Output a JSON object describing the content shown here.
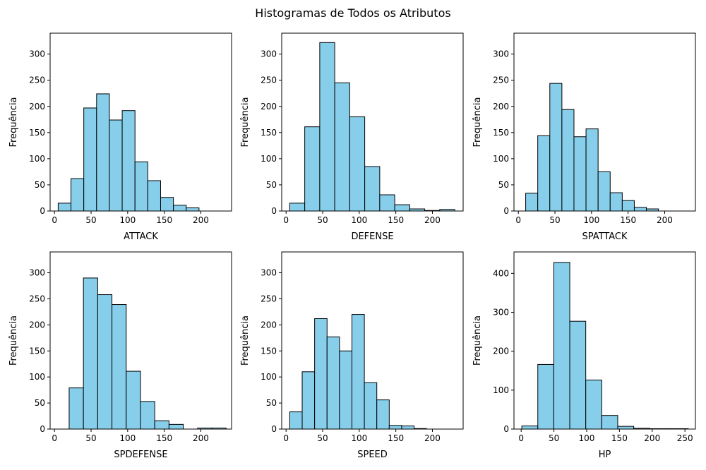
{
  "suptitle": "Histogramas de Todos os Atributos",
  "colors": {
    "bar_fill": "#87ceeb",
    "bar_edge": "#000000",
    "axes": "#000000",
    "background": "#ffffff"
  },
  "chart_data": [
    {
      "type": "bar",
      "subtype": "histogram",
      "xlabel": "ATTACK",
      "ylabel": "Frequência",
      "xlim": [
        -6,
        242
      ],
      "ylim": [
        0,
        340
      ],
      "xticks": [
        0,
        50,
        100,
        150,
        200
      ],
      "yticks": [
        0,
        50,
        100,
        150,
        200,
        250,
        300
      ],
      "bin_edges": [
        5,
        22.5,
        40,
        57.5,
        75,
        92.5,
        110,
        127.5,
        145,
        162.5,
        180,
        197.5,
        215,
        232.5
      ],
      "values": [
        15,
        62,
        197,
        224,
        174,
        192,
        94,
        58,
        26,
        11,
        6,
        0,
        0
      ],
      "grid": false
    },
    {
      "type": "bar",
      "subtype": "histogram",
      "xlabel": "DEFENSE",
      "ylabel": "Frequência",
      "xlim": [
        -6,
        242
      ],
      "ylim": [
        0,
        340
      ],
      "xticks": [
        0,
        50,
        100,
        150,
        200
      ],
      "yticks": [
        0,
        50,
        100,
        150,
        200,
        250,
        300
      ],
      "bin_edges": [
        5,
        25.5,
        46,
        66.5,
        87,
        107.5,
        128,
        148.5,
        169,
        189.5,
        210,
        230.5
      ],
      "values": [
        15,
        161,
        322,
        245,
        180,
        85,
        31,
        12,
        4,
        1,
        3
      ],
      "grid": false
    },
    {
      "type": "bar",
      "subtype": "histogram",
      "xlabel": "SPATTACK",
      "ylabel": "Frequência",
      "xlim": [
        -6,
        242
      ],
      "ylim": [
        0,
        340
      ],
      "xticks": [
        0,
        50,
        100,
        150,
        200
      ],
      "yticks": [
        0,
        50,
        100,
        150,
        200,
        250,
        300
      ],
      "bin_edges": [
        10,
        26.5,
        43,
        59.5,
        76,
        92.5,
        109,
        125.5,
        142,
        158.5,
        175,
        191.5
      ],
      "values": [
        34,
        144,
        244,
        194,
        142,
        157,
        75,
        35,
        20,
        7,
        4
      ],
      "grid": false
    },
    {
      "type": "bar",
      "subtype": "histogram",
      "xlabel": "SPDEFENSE",
      "ylabel": "Frequência",
      "xlim": [
        -6,
        242
      ],
      "ylim": [
        0,
        340
      ],
      "xticks": [
        0,
        50,
        100,
        150,
        200
      ],
      "yticks": [
        0,
        50,
        100,
        150,
        200,
        250,
        300
      ],
      "bin_edges": [
        20,
        39.5,
        59,
        78.5,
        98,
        117.5,
        137,
        156.5,
        176,
        195.5,
        215,
        234.5
      ],
      "values": [
        79,
        290,
        258,
        239,
        111,
        53,
        16,
        9,
        0,
        2,
        2
      ],
      "grid": false
    },
    {
      "type": "bar",
      "subtype": "histogram",
      "xlabel": "SPEED",
      "ylabel": "Frequência",
      "xlim": [
        -6,
        242
      ],
      "ylim": [
        0,
        340
      ],
      "xticks": [
        0,
        50,
        100,
        150,
        200
      ],
      "yticks": [
        0,
        50,
        100,
        150,
        200,
        250,
        300
      ],
      "bin_edges": [
        5,
        22,
        39,
        56,
        73,
        90,
        107,
        124,
        141,
        158,
        175,
        192
      ],
      "values": [
        33,
        110,
        212,
        177,
        150,
        220,
        89,
        56,
        7,
        6,
        1
      ],
      "grid": false
    },
    {
      "type": "bar",
      "subtype": "histogram",
      "xlabel": "HP",
      "ylabel": "Frequência",
      "xlim": [
        -11,
        266
      ],
      "ylim": [
        0,
        455
      ],
      "xticks": [
        0,
        50,
        100,
        150,
        200,
        250
      ],
      "yticks": [
        0,
        100,
        200,
        300,
        400
      ],
      "bin_edges": [
        1,
        25.4,
        49.8,
        74.2,
        98.6,
        123,
        147.4,
        171.8,
        196.2,
        220.6,
        255
      ],
      "values": [
        8,
        166,
        428,
        277,
        126,
        35,
        7,
        2,
        1,
        1
      ],
      "grid": false
    }
  ]
}
